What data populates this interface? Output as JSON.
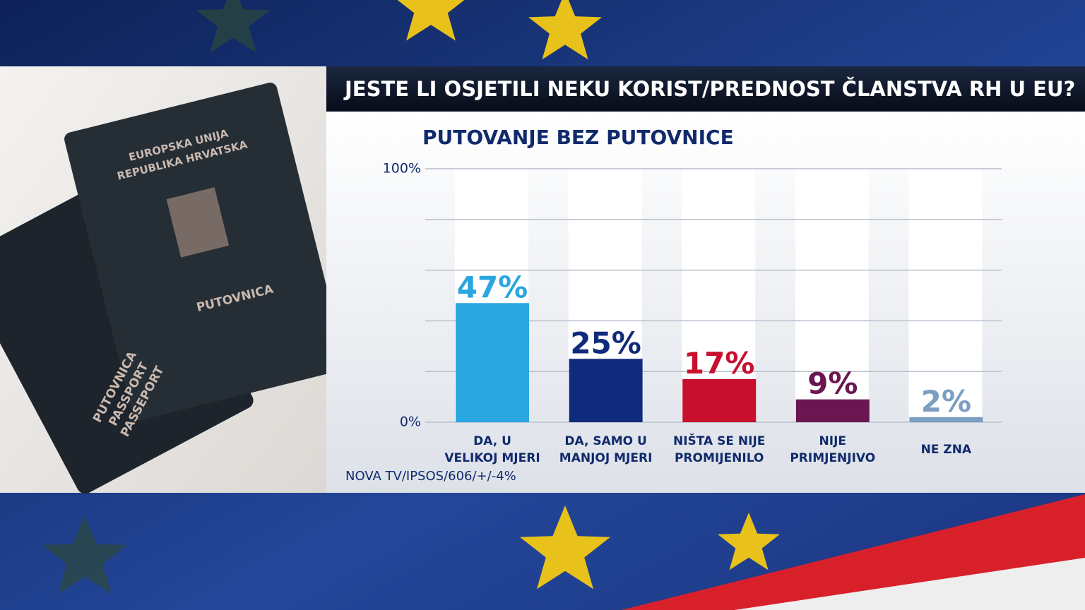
{
  "title": "JESTE LI OSJETILI NEKU KORIST/PREDNOST ČLANSTVA RH U EU?",
  "photo": {
    "back_passport": [
      "EUROPSKA UNIJA",
      "REPUBLIKA HRVATSKA",
      "PUTOVNICA"
    ],
    "front_passport": [
      "PUTOVNICA",
      "PASSPORT",
      "PASSEPORT"
    ]
  },
  "chart_data": {
    "type": "bar",
    "title": "PUTOVANJE BEZ PUTOVNICE",
    "categories": [
      "DA, U\nVELIKOJ MJERI",
      "DA, SAMO U\nMANJOJ MJERI",
      "NIŠTA SE NIJE\nPROMIJENILO",
      "NIJE\nPRIMJENJIVO",
      "NE ZNA"
    ],
    "values": [
      47,
      25,
      17,
      9,
      2
    ],
    "value_labels": [
      "47%",
      "25%",
      "17%",
      "9%",
      "2%"
    ],
    "colors": [
      "#2aa6e0",
      "#102a7c",
      "#c8102e",
      "#6a1650",
      "#7c9ec2"
    ],
    "ylim": [
      0,
      100
    ],
    "yticks": [
      {
        "value": 0,
        "label": "0%"
      },
      {
        "value": 100,
        "label": "100%"
      }
    ],
    "ygrid": [
      0,
      20,
      40,
      60,
      80,
      100
    ],
    "source": "NOVA TV/IPSOS/606/+/-4%"
  }
}
